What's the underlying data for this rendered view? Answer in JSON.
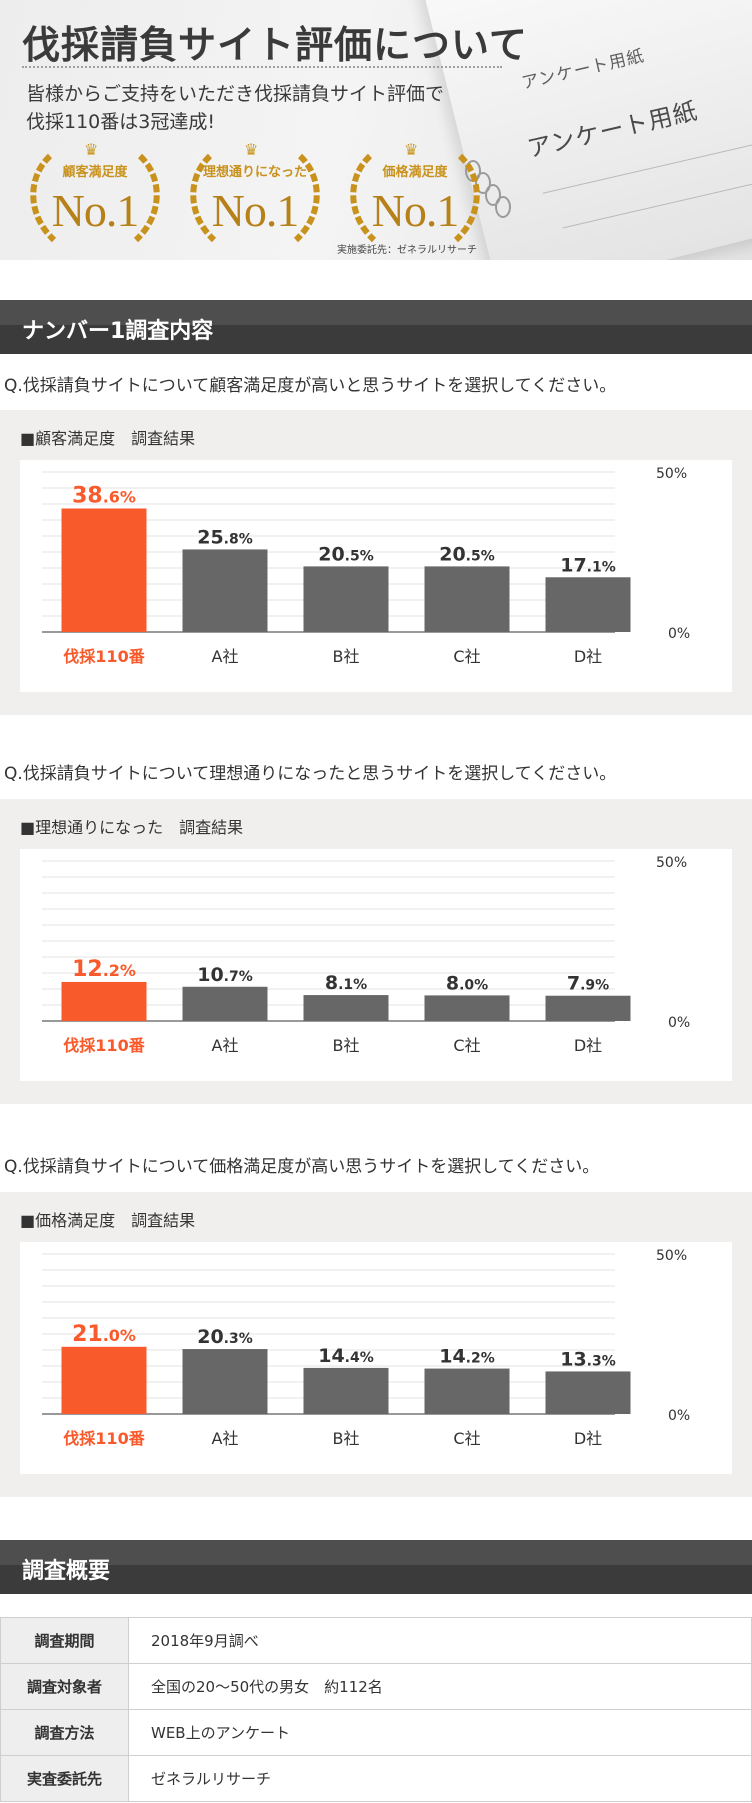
{
  "hero": {
    "title": "伐採請負サイト評価について",
    "lead_line1": "皆様からご支持をいただき伐採請負サイト評価で",
    "lead_line2": "伐採110番は3冠達成!",
    "paper_text1": "アンケート用紙",
    "paper_text2": "アンケート用紙",
    "awards": [
      {
        "label": "顧客満足度",
        "rank": "No.1"
      },
      {
        "label": "理想通りになった",
        "rank": "No.1"
      },
      {
        "label": "価格満足度",
        "rank": "No.1"
      }
    ],
    "credit": "実施委託先：ゼネラルリサーチ",
    "gold": "#c8921d"
  },
  "section1": {
    "title": "ナンバー1調査内容"
  },
  "section2": {
    "title": "調査概要"
  },
  "surveys": [
    {
      "question": "Q.伐採請負サイトについて顧客満足度が高いと思うサイトを選択してください。",
      "panel_title": "■顧客満足度　調査結果"
    },
    {
      "question": "Q.伐採請負サイトについて理想通りになったと思うサイトを選択してください。",
      "panel_title": "■理想通りになった　調査結果"
    },
    {
      "question": "Q.伐採請負サイトについて価格満足度が高い思うサイトを選択してください。",
      "panel_title": "■価格満足度　調査結果"
    }
  ],
  "chart_data": [
    {
      "type": "bar",
      "categories": [
        "伐採110番",
        "A社",
        "B社",
        "C社",
        "D社"
      ],
      "values": [
        38.6,
        25.8,
        20.5,
        20.5,
        17.1
      ],
      "ylim": [
        0,
        50
      ],
      "ytick_labels": [
        "50%",
        "0%"
      ],
      "grid": true,
      "highlight_index": 0,
      "highlight_color": "#f85a2b",
      "bar_color": "#676767"
    },
    {
      "type": "bar",
      "categories": [
        "伐採110番",
        "A社",
        "B社",
        "C社",
        "D社"
      ],
      "values": [
        12.2,
        10.7,
        8.1,
        8.0,
        7.9
      ],
      "ylim": [
        0,
        50
      ],
      "ytick_labels": [
        "50%",
        "0%"
      ],
      "grid": true,
      "highlight_index": 0,
      "highlight_color": "#f85a2b",
      "bar_color": "#676767"
    },
    {
      "type": "bar",
      "categories": [
        "伐採110番",
        "A社",
        "B社",
        "C社",
        "D社"
      ],
      "values": [
        21.0,
        20.3,
        14.4,
        14.2,
        13.3
      ],
      "ylim": [
        0,
        50
      ],
      "ytick_labels": [
        "50%",
        "0%"
      ],
      "grid": true,
      "highlight_index": 0,
      "highlight_color": "#f85a2b",
      "bar_color": "#676767"
    }
  ],
  "summary": {
    "rows": [
      {
        "key": "調査期間",
        "value": "2018年9月調べ"
      },
      {
        "key": "調査対象者",
        "value": "全国の20～50代の男女　約112名"
      },
      {
        "key": "調査方法",
        "value": "WEB上のアンケート"
      },
      {
        "key": "実査委託先",
        "value": "ゼネラルリサーチ"
      }
    ]
  }
}
